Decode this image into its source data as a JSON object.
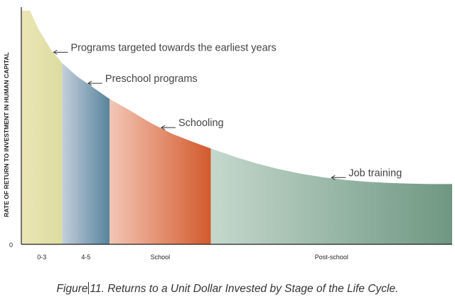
{
  "chart_data": {
    "type": "area",
    "ylabel": "RATE OF RETURN TO INVESTMENT IN HUMAN CAPITAL",
    "y_origin_label": "0",
    "stages": [
      {
        "label": "0-3",
        "start": 0,
        "end": 0.095,
        "color_left": "#ece6b6",
        "color_right": "#dcdca0"
      },
      {
        "label": "4-5",
        "start": 0.095,
        "end": 0.205,
        "color_left": "#c3cedb",
        "color_right": "#57849c"
      },
      {
        "label": "School",
        "start": 0.205,
        "end": 0.44,
        "color_left": "#f3c6b5",
        "color_right": "#d35a2c"
      },
      {
        "label": "Post-school",
        "start": 0.44,
        "end": 1.0,
        "color_left": "#c5d8cd",
        "color_right": "#6e9781"
      }
    ],
    "curve": {
      "x": [
        0,
        0.02,
        0.04,
        0.07,
        0.095,
        0.13,
        0.17,
        0.205,
        0.25,
        0.3,
        0.35,
        0.4,
        0.44,
        0.5,
        0.55,
        0.6,
        0.65,
        0.7,
        0.75,
        0.8,
        0.85,
        0.9,
        0.95,
        1.0
      ],
      "y": [
        1.0,
        1.0,
        0.92,
        0.83,
        0.775,
        0.718,
        0.667,
        0.622,
        0.575,
        0.52,
        0.473,
        0.437,
        0.41,
        0.372,
        0.344,
        0.321,
        0.302,
        0.287,
        0.276,
        0.268,
        0.263,
        0.26,
        0.258,
        0.258
      ]
    },
    "annotations": [
      {
        "text": "Programs targeted towards the earliest years",
        "x": 0.075
      },
      {
        "text": "Preschool programs",
        "x": 0.155
      },
      {
        "text": "Schooling",
        "x": 0.325
      },
      {
        "text": "Job training",
        "x": 0.72
      }
    ]
  },
  "caption": {
    "prefix": "Figure",
    "rest": "11. Returns to a Unit Dollar Invested by Stage of the Life Cycle."
  }
}
